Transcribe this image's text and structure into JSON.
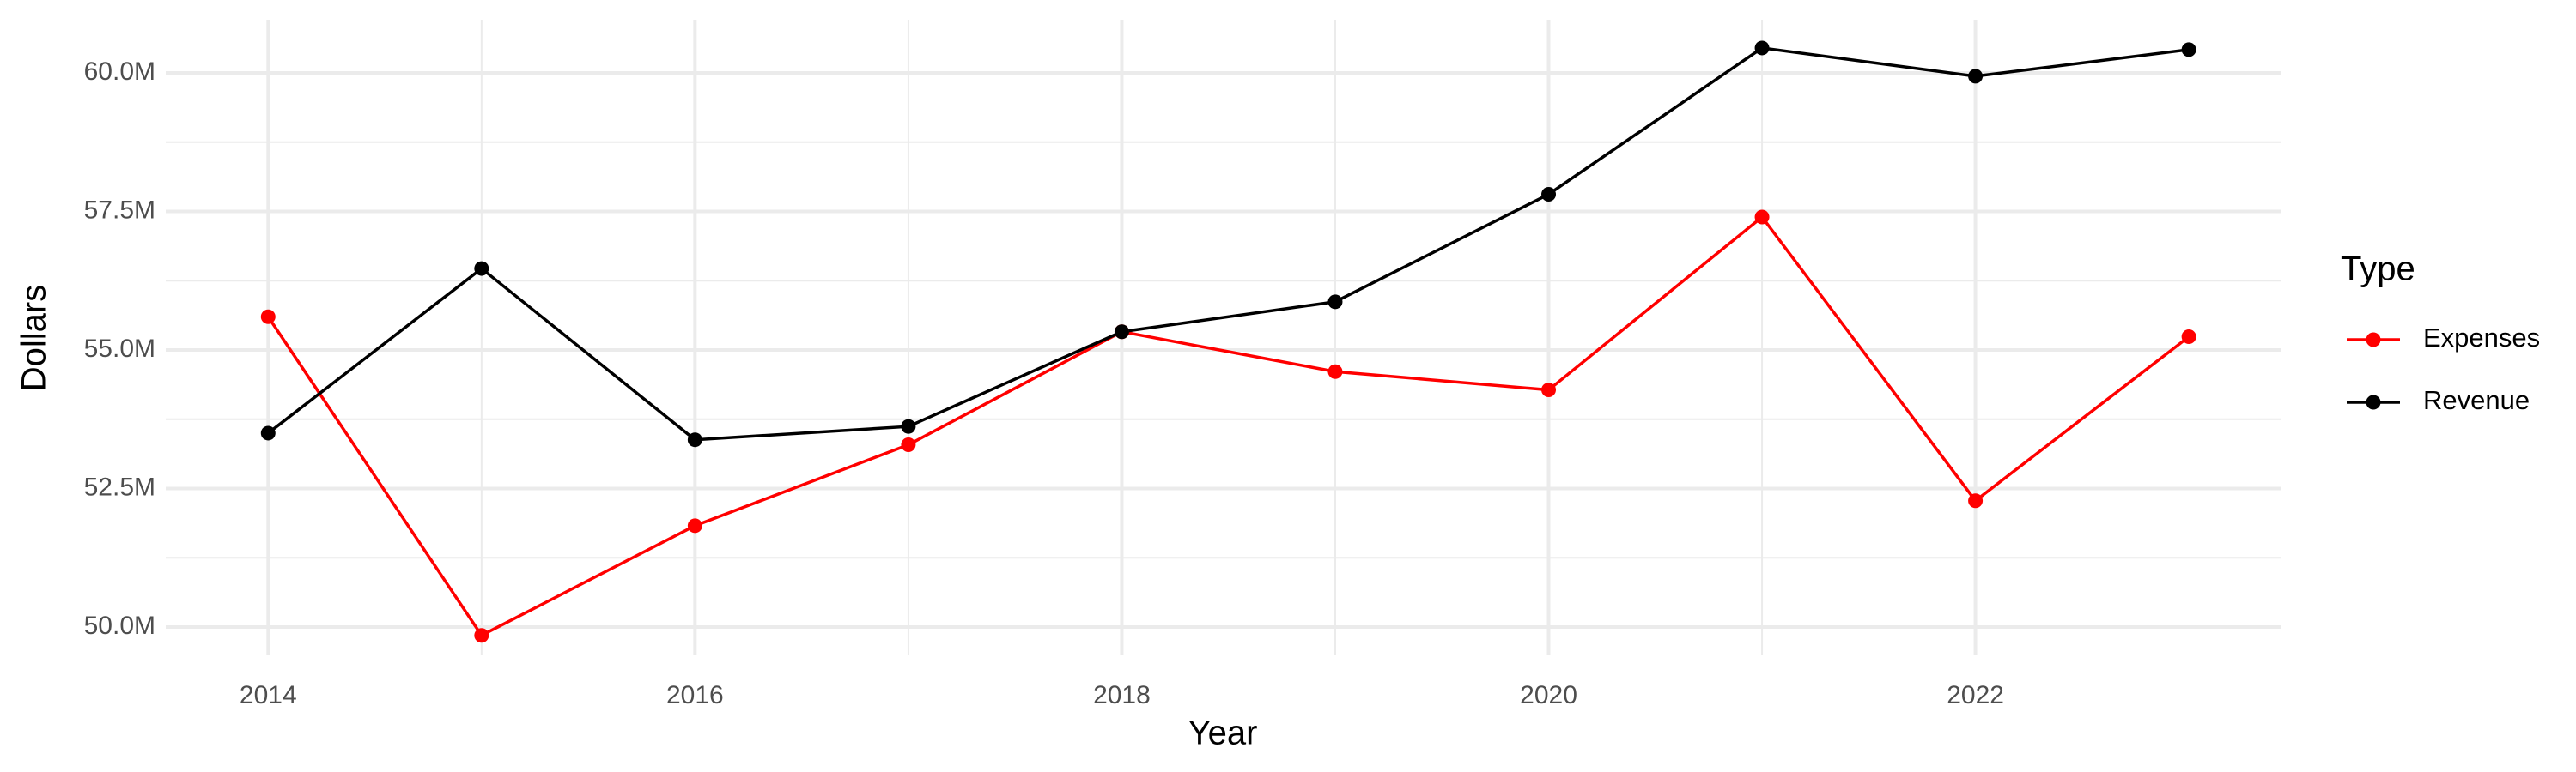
{
  "chart_data": {
    "type": "line",
    "x_label": "Year",
    "y_label": "Dollars",
    "legend_title": "Type",
    "legend": "right",
    "grid": true,
    "x": [
      2014,
      2015,
      2016,
      2017,
      2018,
      2019,
      2020,
      2021,
      2022,
      2023
    ],
    "series": [
      {
        "name": "Expenses",
        "color": "#ff0000",
        "values": [
          55600000,
          49850000,
          51830000,
          53290000,
          55330000,
          54610000,
          54280000,
          57400000,
          52280000,
          55240000
        ]
      },
      {
        "name": "Revenue",
        "color": "#000000",
        "values": [
          53500000,
          56470000,
          53380000,
          53620000,
          55330000,
          55870000,
          57810000,
          60450000,
          59940000,
          60420000
        ]
      }
    ],
    "xlim": [
      2013.52,
      2023.43
    ],
    "xticks": [
      2014,
      2016,
      2018,
      2020,
      2022
    ],
    "ylim": [
      49490000,
      60960000
    ],
    "yticks": [
      {
        "value": 50000000,
        "label": "50.0M"
      },
      {
        "value": 52500000,
        "label": "52.5M"
      },
      {
        "value": 55000000,
        "label": "55.0M"
      },
      {
        "value": 57500000,
        "label": "57.5M"
      },
      {
        "value": 60000000,
        "label": "60.0M"
      }
    ]
  }
}
